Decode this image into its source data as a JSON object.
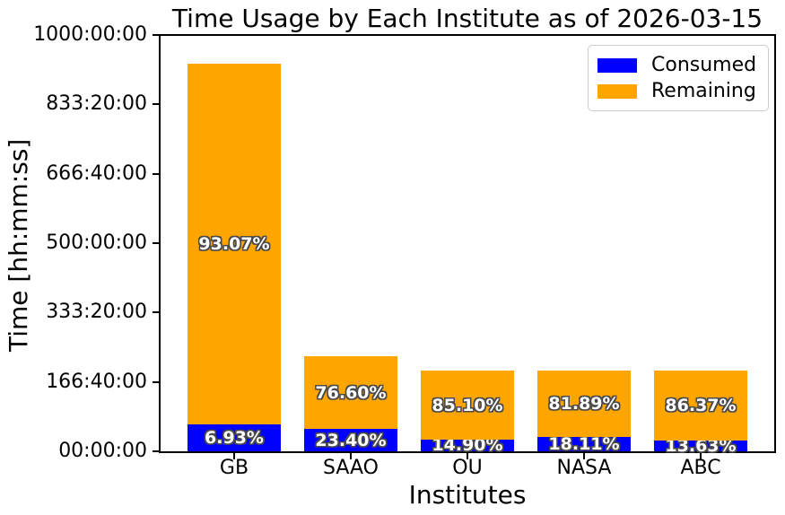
{
  "chart_data": {
    "type": "bar",
    "stacked": true,
    "title": "Time Usage by Each Institute as of 2026-03-15",
    "xlabel": "Institutes",
    "ylabel": "Time [hh:mm:ss]",
    "categories": [
      "GB",
      "SAAO",
      "OU",
      "NASA",
      "ABC"
    ],
    "totals_hours_est": [
      932,
      228,
      193,
      195,
      193
    ],
    "series": [
      {
        "name": "Consumed",
        "color": "#0000ff",
        "pct": [
          6.93,
          23.4,
          14.9,
          18.11,
          13.63
        ],
        "pct_labels": [
          "6.93%",
          "23.40%",
          "14.90%",
          "18.11%",
          "13.63%"
        ],
        "hours_est": [
          64.6,
          53.4,
          28.8,
          35.3,
          26.3
        ]
      },
      {
        "name": "Remaining",
        "color": "#ffa500",
        "pct": [
          93.07,
          76.6,
          85.1,
          81.89,
          86.37
        ],
        "pct_labels": [
          "93.07%",
          "76.60%",
          "85.10%",
          "81.89%",
          "86.37%"
        ],
        "hours_est": [
          867.4,
          174.6,
          164.2,
          159.7,
          166.7
        ]
      }
    ],
    "y_axis": {
      "lim_hours": [
        0,
        1000
      ],
      "tick_labels": [
        "00:00:00",
        "166:40:00",
        "333:20:00",
        "500:00:00",
        "666:40:00",
        "833:20:00",
        "1000:00:00"
      ]
    },
    "x_axis": {
      "label": "Institutes"
    },
    "grid": false,
    "legend": {
      "position": "upper right",
      "entries": [
        {
          "label": "Consumed",
          "color": "#0000ff"
        },
        {
          "label": "Remaining",
          "color": "#ffa500"
        }
      ]
    }
  }
}
